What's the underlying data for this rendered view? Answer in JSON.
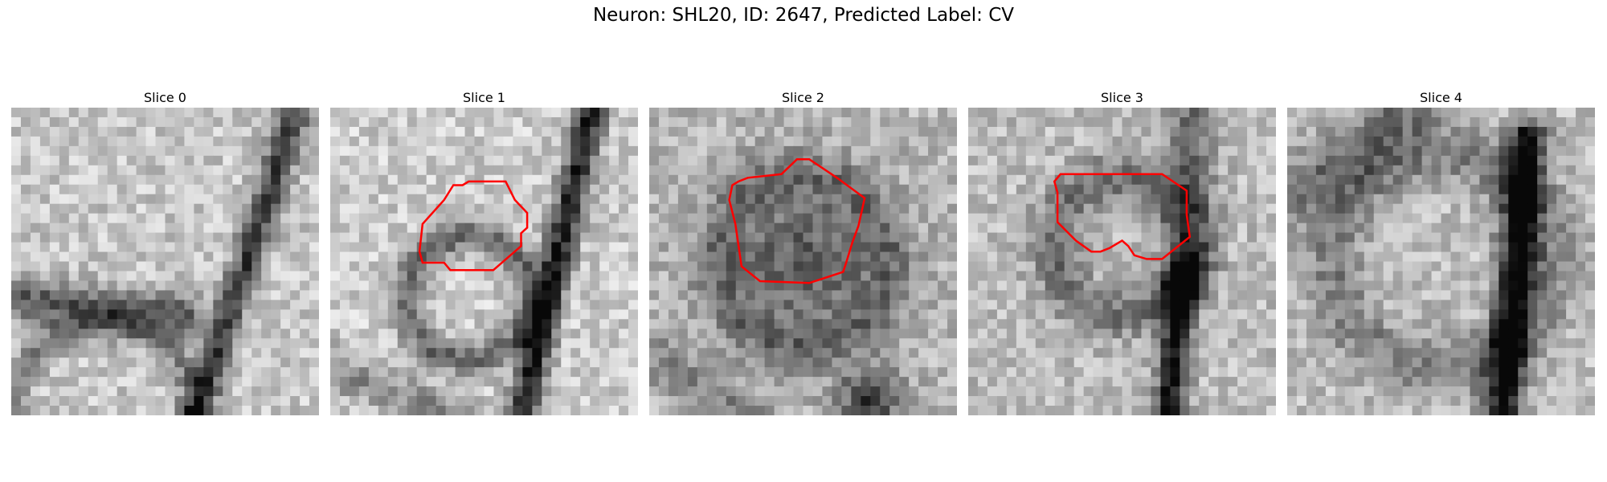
{
  "figure": {
    "title": "Neuron: SHL20, ID: 2647, Predicted Label: CV"
  },
  "panels": [
    {
      "title": "Slice 0",
      "contour": null,
      "seed": 11,
      "pattern": "slice0"
    },
    {
      "title": "Slice 1",
      "contour": [
        [
          0.4,
          0.42
        ],
        [
          0.37,
          0.5
        ],
        [
          0.3,
          0.63
        ],
        [
          0.29,
          0.78
        ],
        [
          0.3,
          0.84
        ],
        [
          0.37,
          0.84
        ],
        [
          0.39,
          0.88
        ],
        [
          0.53,
          0.88
        ],
        [
          0.62,
          0.75
        ],
        [
          0.62,
          0.68
        ],
        [
          0.64,
          0.65
        ],
        [
          0.64,
          0.57
        ],
        [
          0.6,
          0.5
        ],
        [
          0.57,
          0.4
        ],
        [
          0.45,
          0.4
        ],
        [
          0.43,
          0.42
        ]
      ],
      "seed": 23,
      "pattern": "slice1"
    },
    {
      "title": "Slice 2",
      "contour": [
        [
          0.43,
          0.36
        ],
        [
          0.32,
          0.38
        ],
        [
          0.29,
          0.4
        ],
        [
          0.27,
          0.42
        ],
        [
          0.26,
          0.5
        ],
        [
          0.28,
          0.63
        ],
        [
          0.3,
          0.86
        ],
        [
          0.36,
          0.94
        ],
        [
          0.52,
          0.95
        ],
        [
          0.63,
          0.89
        ],
        [
          0.64,
          0.84
        ],
        [
          0.66,
          0.73
        ],
        [
          0.68,
          0.64
        ],
        [
          0.7,
          0.49
        ],
        [
          0.61,
          0.38
        ],
        [
          0.52,
          0.28
        ],
        [
          0.48,
          0.28
        ]
      ],
      "seed": 37,
      "pattern": "slice2"
    },
    {
      "title": "Slice 3",
      "contour": [
        [
          0.3,
          0.36
        ],
        [
          0.28,
          0.4
        ],
        [
          0.29,
          0.46
        ],
        [
          0.29,
          0.62
        ],
        [
          0.35,
          0.72
        ],
        [
          0.4,
          0.78
        ],
        [
          0.43,
          0.78
        ],
        [
          0.46,
          0.76
        ],
        [
          0.5,
          0.72
        ],
        [
          0.52,
          0.75
        ],
        [
          0.54,
          0.8
        ],
        [
          0.58,
          0.82
        ],
        [
          0.63,
          0.82
        ],
        [
          0.72,
          0.7
        ],
        [
          0.71,
          0.58
        ],
        [
          0.71,
          0.45
        ],
        [
          0.63,
          0.36
        ],
        [
          0.3,
          0.36
        ]
      ],
      "seed": 53,
      "pattern": "slice3"
    },
    {
      "title": "Slice 4",
      "contour": null,
      "seed": 71,
      "pattern": "slice4"
    }
  ],
  "colors": {
    "contour": "#ff0000"
  }
}
